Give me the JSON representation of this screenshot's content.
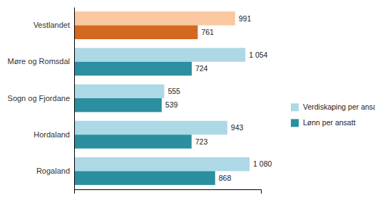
{
  "chart_data": {
    "type": "bar",
    "orientation": "horizontal",
    "categories": [
      "Rogaland",
      "Hordaland",
      "Sogn og Fjordane",
      "Møre og Romsdal",
      "Vestlandet"
    ],
    "series": [
      {
        "name": "Verdiskaping per ansatt",
        "color": "#add8e6",
        "colors": [
          "#add8e6",
          "#add8e6",
          "#add8e6",
          "#add8e6",
          "#f9c8a0"
        ],
        "values": [
          1080,
          943,
          555,
          1054,
          991
        ],
        "value_labels": [
          "1 080",
          "943",
          "555",
          "1 054",
          "991"
        ]
      },
      {
        "name": "Lønn per ansatt",
        "color": "#2b8fa0",
        "colors": [
          "#2b8fa0",
          "#2b8fa0",
          "#2b8fa0",
          "#2b8fa0",
          "#d2691e"
        ],
        "values": [
          868,
          723,
          539,
          724,
          761
        ],
        "value_labels": [
          "868",
          "723",
          "539",
          "724",
          "761"
        ]
      }
    ],
    "xlim": [
      0,
      1150
    ],
    "xticks": [],
    "data_labels": true,
    "tick_labels": "y",
    "legend": "right"
  }
}
